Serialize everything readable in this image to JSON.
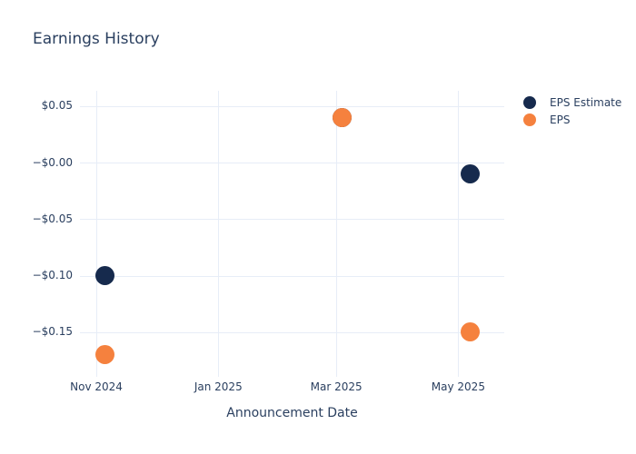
{
  "title": "Earnings History",
  "colors": {
    "text": "#2a3f5f",
    "grid": "#e7edf7",
    "background": "#ffffff",
    "eps_estimate": "#162a4d",
    "eps": "#f5813e"
  },
  "legend": {
    "items": [
      {
        "label": "EPS Estimate",
        "color": "#162a4d",
        "marker": "circle-icon"
      },
      {
        "label": "EPS",
        "color": "#f5813e",
        "marker": "circle-icon"
      }
    ]
  },
  "chart_data": {
    "type": "scatter",
    "title": "Earnings History",
    "xlabel": "Announcement Date",
    "ylabel": "",
    "grid": true,
    "legend_position": "outside-top-right",
    "x_tick_labels": [
      "Nov 2024",
      "Jan 2025",
      "Mar 2025",
      "May 2025"
    ],
    "x_tick_days": [
      0,
      61,
      120,
      181
    ],
    "x_range_days": [
      -8.2,
      204
    ],
    "y_tick_labels": [
      "$0.05",
      "−$0.00",
      "−$0.05",
      "−$0.10",
      "−$0.15"
    ],
    "y_tick_values": [
      0.05,
      0,
      -0.05,
      -0.1,
      -0.15
    ],
    "y_range": [
      -0.1895,
      0.0635
    ],
    "x_days": [
      4.5,
      122.8,
      186.9
    ],
    "x_dates_est": [
      "2024-11-05",
      "2025-03-04",
      "2025-05-07"
    ],
    "series": [
      {
        "name": "EPS Estimate",
        "color": "#162a4d",
        "values": [
          -0.1,
          0.04,
          -0.01
        ]
      },
      {
        "name": "EPS",
        "color": "#f5813e",
        "values": [
          -0.17,
          0.04,
          -0.15
        ]
      }
    ],
    "marker_diameter_px": 21
  }
}
